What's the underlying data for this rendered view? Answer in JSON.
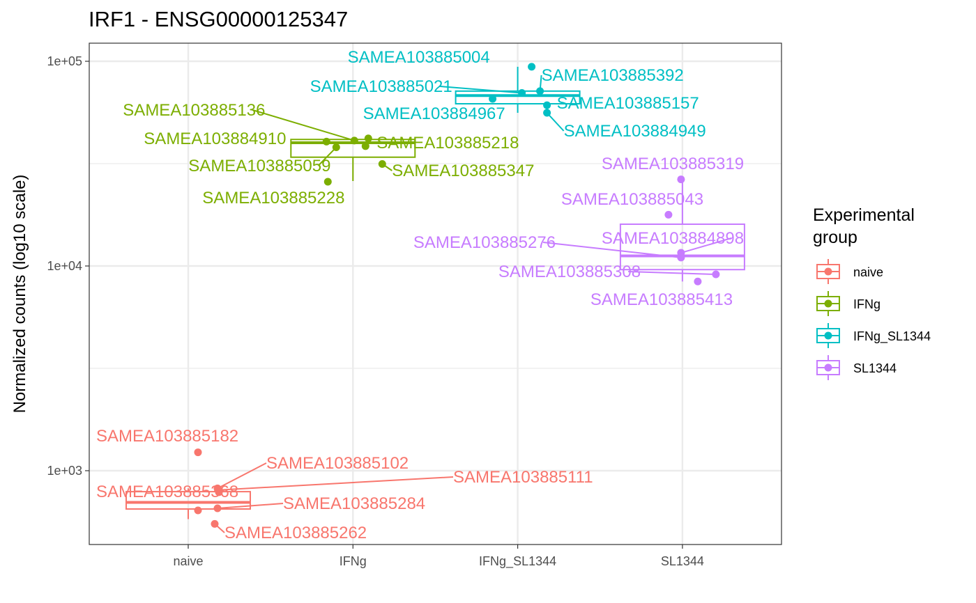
{
  "chart_data": {
    "type": "box",
    "title": "IRF1 - ENSG00000125347",
    "xlabel": "",
    "ylabel": "Normalized counts (log10 scale)",
    "yscale": "log10",
    "ylim": [
      450,
      120000
    ],
    "yticks": [
      {
        "value": 1000,
        "label": "1e+03"
      },
      {
        "value": 10000,
        "label": "1e+04"
      },
      {
        "value": 100000,
        "label": "1e+05"
      }
    ],
    "categories": [
      "naive",
      "IFNg",
      "IFNg_SL1344",
      "SL1344"
    ],
    "grid": true,
    "legend": {
      "title": [
        "Experimental",
        "group"
      ],
      "position": "right"
    },
    "colors": {
      "naive": "#F8766D",
      "IFNg": "#7CAE00",
      "IFNg_SL1344": "#00BFC4",
      "SL1344": "#C77CFF"
    },
    "groups": [
      {
        "name": "naive",
        "box": {
          "whisker_low": 580,
          "q1": 650,
          "median": 700,
          "q3": 790,
          "whisker_high": 820
        },
        "points": [
          {
            "label": "SAMEA103885182",
            "value": 1230
          },
          {
            "label": "SAMEA103885102",
            "value": 820
          },
          {
            "label": "SAMEA103885111",
            "value": 805
          },
          {
            "label": "SAMEA103885368",
            "value": 785
          },
          {
            "label": "SAMEA103885284",
            "value": 655
          },
          {
            "label": "SAMEA103885262",
            "value": 550
          },
          {
            "label": "",
            "value": 640
          }
        ]
      },
      {
        "name": "IFNg",
        "box": {
          "whisker_low": 26000,
          "q1": 34000,
          "median": 40000,
          "q3": 41500,
          "whisker_high": 42000
        },
        "points": [
          {
            "label": "SAMEA103885136",
            "value": 41000
          },
          {
            "label": "",
            "value": 42000
          },
          {
            "label": "SAMEA103884910",
            "value": 40500
          },
          {
            "label": "SAMEA103885218",
            "value": 38500
          },
          {
            "label": "SAMEA103885059",
            "value": 38000
          },
          {
            "label": "SAMEA103885347",
            "value": 31500
          },
          {
            "label": "SAMEA103885228",
            "value": 25800
          }
        ]
      },
      {
        "name": "IFNg_SL1344",
        "box": {
          "whisker_low": 56000,
          "q1": 62000,
          "median": 68000,
          "q3": 71500,
          "whisker_high": 94000
        },
        "points": [
          {
            "label": "SAMEA103885004",
            "value": 94000
          },
          {
            "label": "SAMEA103885392",
            "value": 71500
          },
          {
            "label": "SAMEA103885021",
            "value": 70000
          },
          {
            "label": "SAMEA103884967",
            "value": 65500
          },
          {
            "label": "SAMEA103885157",
            "value": 61000
          },
          {
            "label": "SAMEA103884949",
            "value": 56000
          }
        ]
      },
      {
        "name": "SL1344",
        "box": {
          "whisker_low": 8400,
          "q1": 9600,
          "median": 11200,
          "q3": 16000,
          "whisker_high": 26500
        },
        "points": [
          {
            "label": "SAMEA103885319",
            "value": 26500
          },
          {
            "label": "SAMEA103885043",
            "value": 17800
          },
          {
            "label": "SAMEA103884898",
            "value": 11600
          },
          {
            "label": "SAMEA103885276",
            "value": 11000
          },
          {
            "label": "SAMEA103885308",
            "value": 9100
          },
          {
            "label": "SAMEA103885413",
            "value": 8400
          }
        ]
      }
    ]
  }
}
